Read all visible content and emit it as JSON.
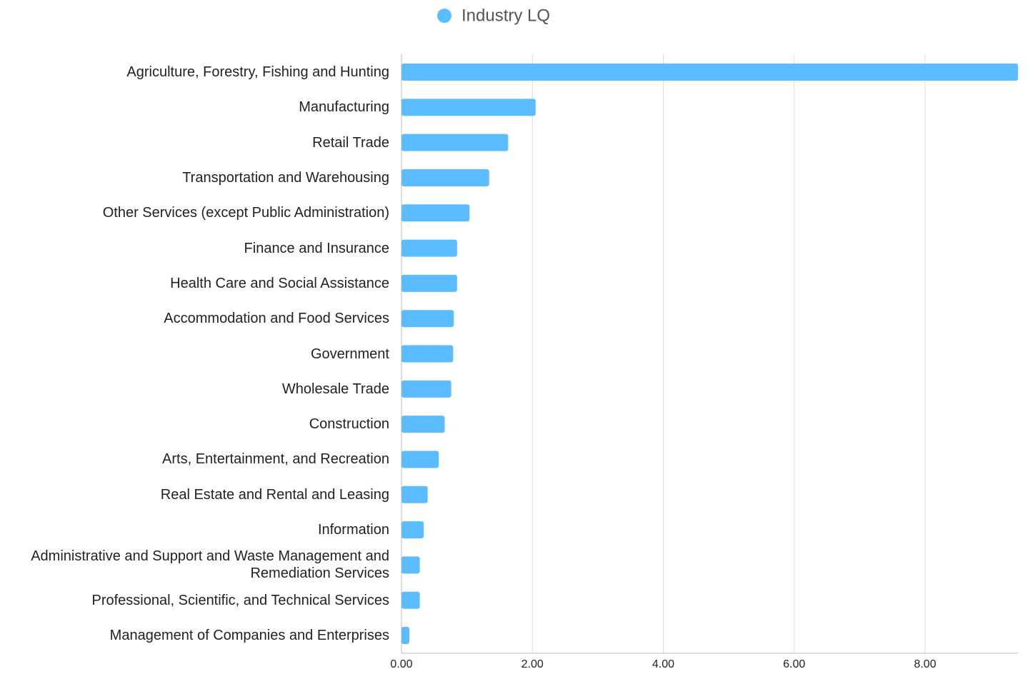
{
  "chart_data": {
    "type": "barh",
    "legend": "Industry LQ",
    "series": [
      {
        "name": "Industry LQ",
        "color": "#5bbcff",
        "values": [
          9.42,
          2.05,
          1.63,
          1.34,
          1.04,
          0.85,
          0.85,
          0.8,
          0.79,
          0.76,
          0.66,
          0.57,
          0.4,
          0.34,
          0.28,
          0.28,
          0.12
        ]
      }
    ],
    "categories": [
      "Agriculture, Forestry, Fishing and Hunting",
      "Manufacturing",
      "Retail Trade",
      "Transportation and Warehousing",
      "Other Services (except Public Administration)",
      "Finance and Insurance",
      "Health Care and Social Assistance",
      "Accommodation and Food Services",
      "Government",
      "Wholesale Trade",
      "Construction",
      "Arts, Entertainment, and Recreation",
      "Real Estate and Rental and Leasing",
      "Information",
      "Administrative and Support and Waste Management and Remediation Services",
      "Professional, Scientific, and Technical Services",
      "Management of Companies and Enterprises"
    ],
    "xlim": [
      0,
      9.42
    ],
    "xticks": [
      {
        "value": 0,
        "label": "0.00"
      },
      {
        "value": 2,
        "label": "2.00"
      },
      {
        "value": 4,
        "label": "4.00"
      },
      {
        "value": 6,
        "label": "6.00"
      },
      {
        "value": 8,
        "label": "8.00"
      }
    ],
    "grid": true
  }
}
